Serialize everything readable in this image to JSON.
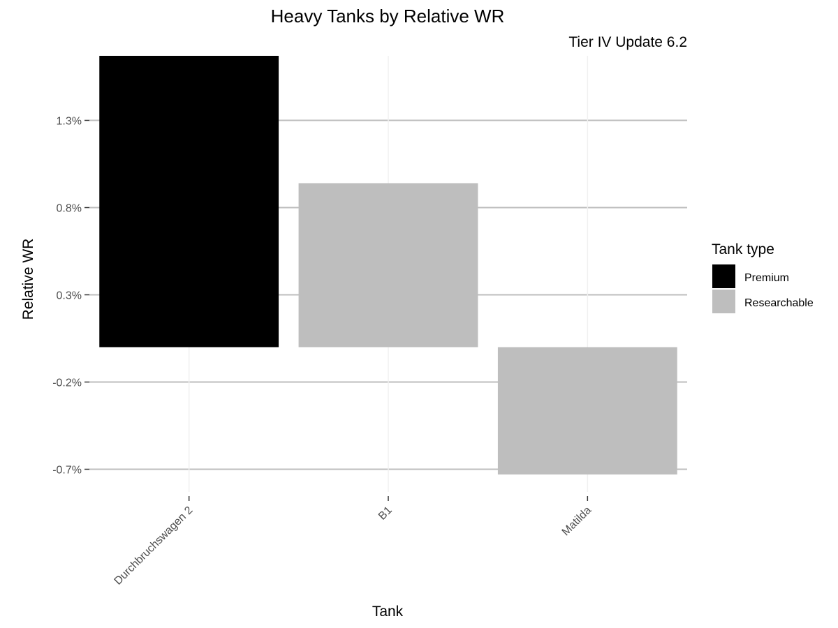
{
  "chart_data": {
    "type": "bar",
    "title": "Heavy Tanks by Relative WR",
    "subtitle": "Tier IV Update 6.2",
    "xlabel": "Tank",
    "ylabel": "Relative WR",
    "categories": [
      "Durchbruchswagen 2",
      "B1",
      "Matilda"
    ],
    "values": [
      1.67,
      0.94,
      -0.73
    ],
    "groups": [
      "Premium",
      "Researchable",
      "Researchable"
    ],
    "ylim": [
      -0.83,
      1.67
    ],
    "yticks": [
      1.3,
      0.8,
      0.3,
      -0.2,
      -0.7
    ],
    "ytick_labels": [
      "1.3%",
      "0.8%",
      "0.3%",
      "-0.2%",
      "-0.7%"
    ],
    "grid": true,
    "legend": {
      "title": "Tank type",
      "placement": "right",
      "items": [
        {
          "label": "Premium",
          "color": "#000000"
        },
        {
          "label": "Researchable",
          "color": "#bebebe"
        }
      ]
    }
  }
}
